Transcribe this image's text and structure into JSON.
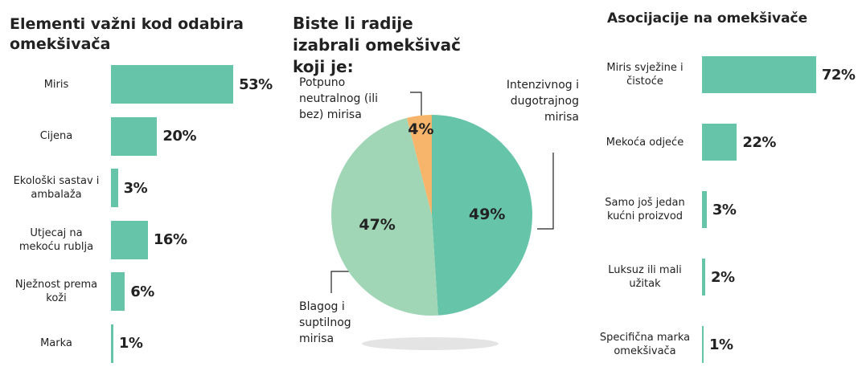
{
  "chart_data": [
    {
      "type": "hbar",
      "title": "Elementi važni kod odabira omekšivača",
      "categories": [
        "Miris",
        "Cijena",
        "Ekološki sastav i ambalaža",
        "Utjecaj na mekoću rublja",
        "Nježnost prema koži",
        "Marka"
      ],
      "values": [
        53,
        20,
        3,
        16,
        6,
        1
      ],
      "value_labels": [
        "53%",
        "20%",
        "3%",
        "16%",
        "6%",
        "1%"
      ],
      "color": "#66c4a9"
    },
    {
      "type": "pie",
      "title": "Biste li radije izabrali omekšivač koji je:",
      "categories": [
        "Intenzivnog i dugotrajnog mirisa",
        "Blagog i suptilnog mirisa",
        "Potpuno neutralnog (ili bez) mirisa"
      ],
      "values": [
        49,
        47,
        4
      ],
      "value_labels": [
        "49%",
        "47%",
        "4%"
      ],
      "colors": [
        "#66c4a9",
        "#a0d6b5",
        "#f7b56b"
      ]
    },
    {
      "type": "hbar",
      "title": "Asocijacije na omekšivače",
      "categories": [
        "Miris svježine i čistoće",
        "Mekoća odjeće",
        "Samo još jedan kućni proizvod",
        "Luksuz ili mali užitak",
        "Specifična marka omekšivača"
      ],
      "values": [
        72,
        22,
        3,
        2,
        1
      ],
      "value_labels": [
        "72%",
        "22%",
        "3%",
        "2%",
        "1%"
      ],
      "color": "#66c4a9"
    }
  ]
}
